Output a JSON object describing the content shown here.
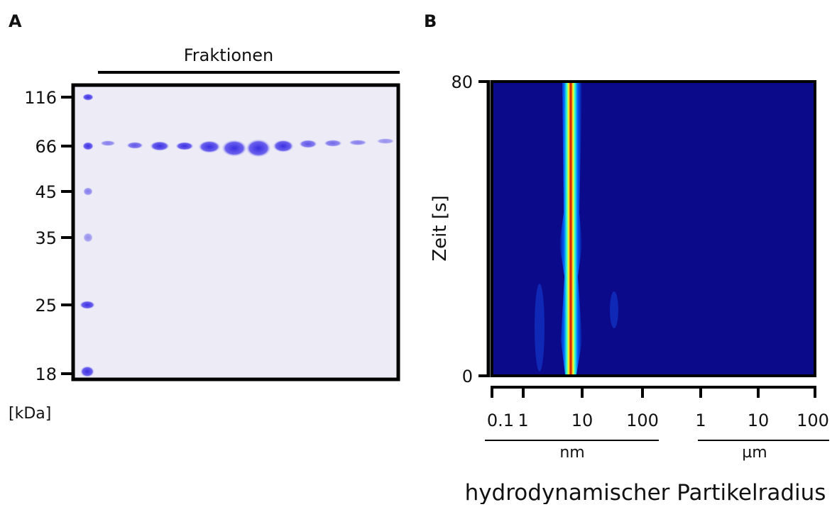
{
  "panel_a": {
    "label": "A",
    "header": "Fraktionen",
    "unit": "[kDa]",
    "marker_labels": [
      "116",
      "66",
      "45",
      "35",
      "25",
      "18"
    ]
  },
  "panel_b": {
    "label": "B",
    "y_label": "Zeit [s]",
    "y_tick_labels": [
      "80",
      "0"
    ],
    "x_tick_labels": [
      "0.1",
      "1",
      "10",
      "100",
      "1",
      "10",
      "100"
    ],
    "x_units": [
      "nm",
      "µm"
    ],
    "x_label": "hydrodynamischer Partikelradius"
  }
}
